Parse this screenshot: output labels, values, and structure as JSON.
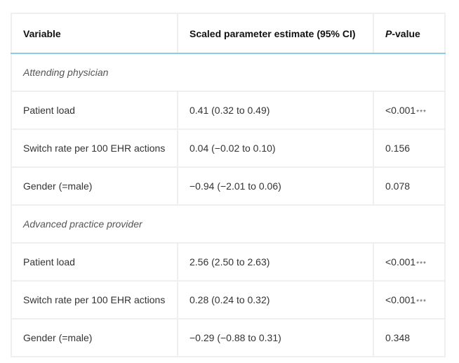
{
  "table": {
    "headers": {
      "variable": "Variable",
      "estimate": "Scaled parameter estimate (95% CI)",
      "p_value_italic": "P",
      "p_value_rest": "-value"
    },
    "sections": [
      {
        "title": "Attending physician",
        "rows": [
          {
            "variable": "Patient load",
            "estimate": "0.41 (0.32 to 0.49)",
            "p_value": "<0.001",
            "stars": "***"
          },
          {
            "variable": "Switch rate per 100 EHR actions",
            "estimate": "0.04 (−0.02 to 0.10)",
            "p_value": "0.156",
            "stars": ""
          },
          {
            "variable": "Gender (=male)",
            "estimate": "−0.94 (−2.01 to 0.06)",
            "p_value": "0.078",
            "stars": ""
          }
        ]
      },
      {
        "title": "Advanced practice provider",
        "rows": [
          {
            "variable": "Patient load",
            "estimate": "2.56 (2.50 to 2.63)",
            "p_value": "<0.001",
            "stars": "***"
          },
          {
            "variable": "Switch rate per 100 EHR actions",
            "estimate": "0.28 (0.24 to 0.32)",
            "p_value": "<0.001",
            "stars": "***"
          },
          {
            "variable": "Gender (=male)",
            "estimate": "−0.29 (−0.88 to 0.31)",
            "p_value": "0.348",
            "stars": ""
          }
        ]
      }
    ]
  }
}
